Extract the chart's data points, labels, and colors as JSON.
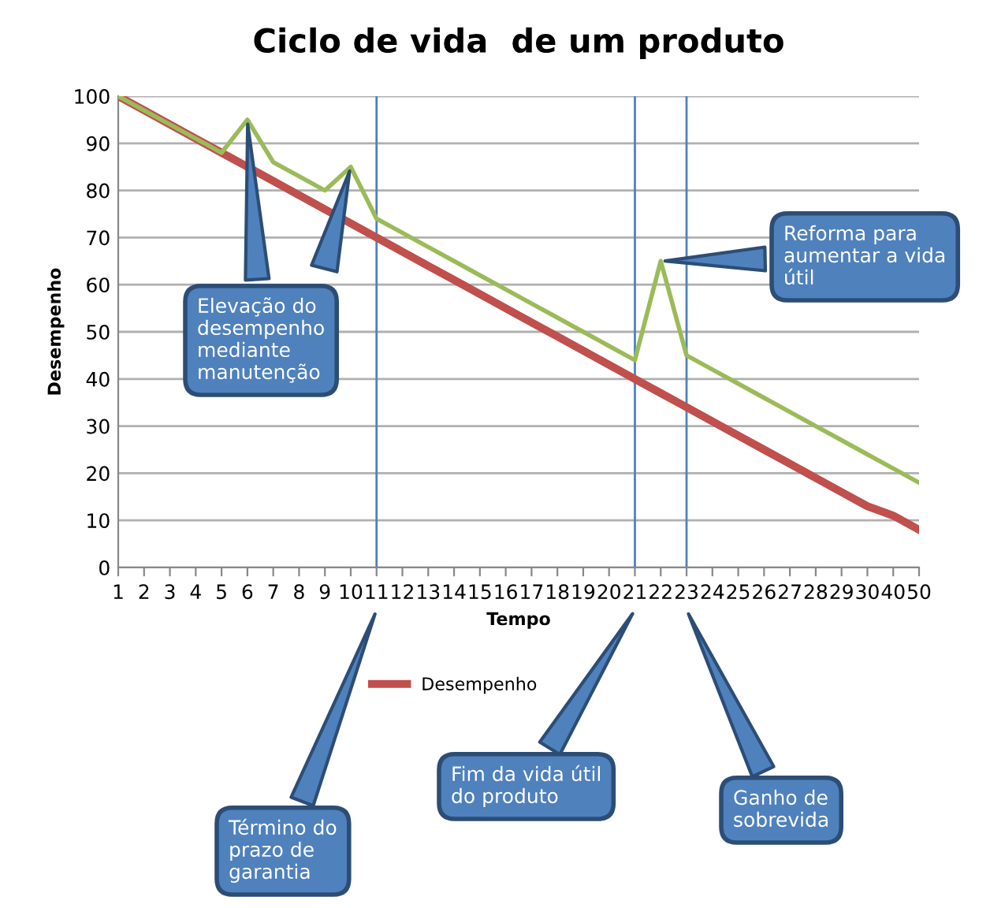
{
  "chart_data": {
    "type": "line",
    "title": "Ciclo de vida  de um produto",
    "xlabel": "Tempo",
    "ylabel": "Desempenho",
    "categories": [
      "1",
      "2",
      "3",
      "4",
      "5",
      "6",
      "7",
      "8",
      "9",
      "10",
      "11",
      "12",
      "13",
      "14",
      "15",
      "16",
      "17",
      "18",
      "19",
      "20",
      "21",
      "22",
      "23",
      "24",
      "25",
      "26",
      "27",
      "28",
      "29",
      "30",
      "40",
      "50"
    ],
    "series": [
      {
        "name": "Desempenho",
        "color": "#c0504d",
        "values": [
          100,
          97,
          94,
          91,
          88,
          85,
          82,
          79,
          76,
          73,
          70,
          67,
          64,
          61,
          58,
          55,
          52,
          49,
          46,
          43,
          40,
          37,
          34,
          31,
          28,
          25,
          22,
          19,
          16,
          13,
          11,
          8
        ]
      },
      {
        "color": "#9bbb59",
        "values": [
          100,
          97,
          94,
          91,
          88,
          95,
          86,
          83,
          80,
          85,
          74,
          71,
          68,
          65,
          62,
          59,
          56,
          53,
          50,
          47,
          44,
          65,
          45,
          42,
          39,
          36,
          33,
          30,
          27,
          24,
          21,
          18
        ]
      }
    ],
    "ylim": [
      0,
      100
    ],
    "yticks": [
      0,
      10,
      20,
      30,
      40,
      50,
      60,
      70,
      80,
      90,
      100
    ],
    "grid": "y",
    "legend": "bottom",
    "marker": "none",
    "line_style": "solid",
    "ref_lines": [
      {
        "axis": "x",
        "value": "11",
        "color": "#4f81bd"
      },
      {
        "axis": "x",
        "value": "21",
        "color": "#4f81bd"
      },
      {
        "axis": "x",
        "value": "23",
        "color": "#4f81bd"
      }
    ],
    "annotations": [
      {
        "text": "Elevação do\ndesempenho\nmediante\nmanutenção",
        "x": "6",
        "y": 95
      },
      {
        "text": "Reforma para\naumentar a vida\nútil",
        "x": "22",
        "y": 65
      },
      "Término do\nprazo de\ngarantia",
      "Fim da vida útil\ndo produto",
      "Ganho de\nsobrevida"
    ]
  }
}
